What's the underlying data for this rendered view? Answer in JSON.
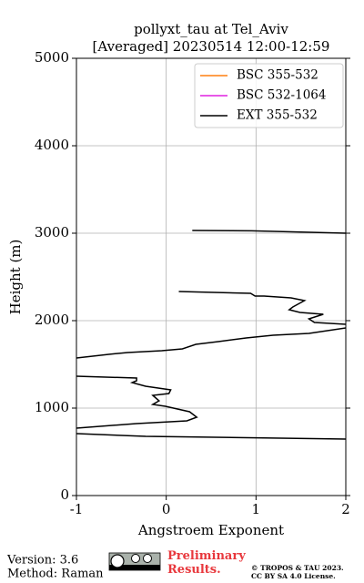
{
  "chart_data": {
    "type": "line",
    "title": [
      "pollyxt_tau at Tel_Aviv",
      "[Averaged] 20230514 12:00-12:59"
    ],
    "xlabel": "Angstroem Exponent",
    "ylabel": "Height (m)",
    "xlim": [
      -1,
      2
    ],
    "xticks": [
      -1,
      0,
      1,
      2
    ],
    "ylim": [
      0,
      5000
    ],
    "yticks": [
      0,
      1000,
      2000,
      3000,
      4000,
      5000
    ],
    "grid": true,
    "legend": "upper right",
    "y": [
      3031,
      3027,
      3000,
      null,
      2333,
      2313,
      2281,
      2281,
      2260,
      2229,
      2156,
      2125,
      2094,
      2073,
      2021,
      1979,
      1958,
      null,
      1917,
      1854,
      1833,
      1802,
      1760,
      1729,
      1677,
      1656,
      1635,
      1615,
      1573,
      null,
      1365,
      1344,
      1313,
      1292,
      1250,
      1208,
      1167,
      1146,
      1083,
      1042,
      1021,
      958,
      896,
      854,
      823,
      771,
      null,
      708,
      677,
      646
    ],
    "series": [
      {
        "name": "BSC 355-532",
        "color": "#ff7f0e",
        "values": [
          null,
          null,
          null,
          null,
          null,
          null,
          null,
          null,
          null,
          null,
          null,
          null,
          null,
          null,
          null,
          null,
          null,
          null,
          null,
          null,
          null,
          null,
          null,
          null,
          null,
          null,
          null,
          null,
          null,
          null,
          null,
          null,
          null,
          null,
          null,
          null,
          null,
          null,
          null,
          null,
          null,
          null,
          null,
          null,
          null,
          null,
          null,
          null,
          null,
          null
        ]
      },
      {
        "name": "BSC 532-1064",
        "color": "#e020e0",
        "values": [
          null,
          null,
          null,
          null,
          null,
          null,
          null,
          null,
          null,
          null,
          null,
          null,
          null,
          null,
          null,
          null,
          null,
          null,
          null,
          null,
          null,
          null,
          null,
          null,
          null,
          null,
          null,
          null,
          null,
          null,
          null,
          null,
          null,
          null,
          null,
          null,
          null,
          null,
          null,
          null,
          null,
          null,
          null,
          null,
          null,
          null,
          null,
          null,
          null,
          null
        ]
      },
      {
        "name": "EXT 355-532",
        "color": "#000000",
        "values": [
          0.29,
          0.95,
          2.0,
          null,
          0.14,
          0.94,
          0.99,
          1.09,
          1.39,
          1.54,
          1.41,
          1.37,
          1.49,
          1.75,
          1.59,
          1.65,
          2.0,
          null,
          2.0,
          1.59,
          1.19,
          0.89,
          0.58,
          0.33,
          0.18,
          -0.05,
          -0.43,
          -0.64,
          -1.0,
          null,
          -1.0,
          -0.33,
          -0.33,
          -0.38,
          -0.23,
          0.05,
          0.03,
          -0.15,
          -0.08,
          -0.15,
          -0.01,
          0.26,
          0.34,
          0.23,
          -0.33,
          -1.0,
          null,
          -1.0,
          -0.23,
          2.0
        ]
      }
    ]
  },
  "footer": {
    "version": "Version: 3.6",
    "method": "Method: Raman",
    "preliminary": "Preliminary Results.",
    "copyright": [
      "© TROPOS & TAU 2023.",
      "CC BY SA 4.0 License."
    ]
  }
}
